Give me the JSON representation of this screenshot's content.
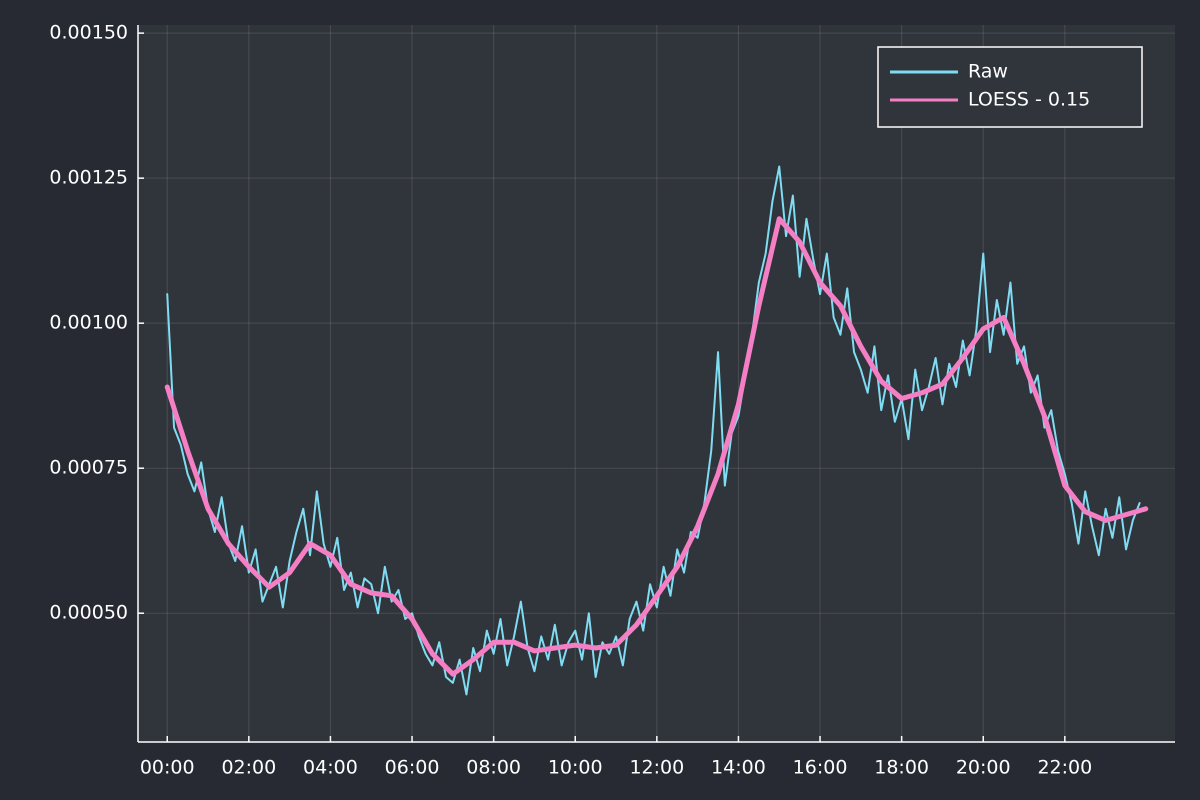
{
  "chart_data": {
    "type": "line",
    "xlim": [
      -43,
      1482
    ],
    "xticks": [
      {
        "value": 0,
        "label": "00:00"
      },
      {
        "value": 120,
        "label": "02:00"
      },
      {
        "value": 240,
        "label": "04:00"
      },
      {
        "value": 360,
        "label": "06:00"
      },
      {
        "value": 480,
        "label": "08:00"
      },
      {
        "value": 600,
        "label": "10:00"
      },
      {
        "value": 720,
        "label": "12:00"
      },
      {
        "value": 840,
        "label": "14:00"
      },
      {
        "value": 960,
        "label": "16:00"
      },
      {
        "value": 1080,
        "label": "18:00"
      },
      {
        "value": 1200,
        "label": "20:00"
      },
      {
        "value": 1320,
        "label": "22:00"
      }
    ],
    "ylim": [
      0.000278,
      0.001514
    ],
    "yticks": [
      {
        "value": 0.0005,
        "label": "0.00050"
      },
      {
        "value": 0.00075,
        "label": "0.00075"
      },
      {
        "value": 0.001,
        "label": "0.00100"
      },
      {
        "value": 0.00125,
        "label": "0.00125"
      },
      {
        "value": 0.0015,
        "label": "0.00150"
      }
    ],
    "grid": true,
    "legend": "top-right",
    "series": [
      {
        "name": "Raw",
        "color": "#7fdcf2",
        "width": 2,
        "x": [
          0,
          10,
          20,
          30,
          40,
          50,
          60,
          70,
          80,
          90,
          100,
          110,
          120,
          130,
          140,
          150,
          160,
          170,
          180,
          190,
          200,
          210,
          220,
          230,
          240,
          250,
          260,
          270,
          280,
          290,
          300,
          310,
          320,
          330,
          340,
          350,
          360,
          370,
          380,
          390,
          400,
          410,
          420,
          430,
          440,
          450,
          460,
          470,
          480,
          490,
          500,
          510,
          520,
          530,
          540,
          550,
          560,
          570,
          580,
          590,
          600,
          610,
          620,
          630,
          640,
          650,
          660,
          670,
          680,
          690,
          700,
          710,
          720,
          730,
          740,
          750,
          760,
          770,
          780,
          790,
          800,
          810,
          820,
          830,
          840,
          850,
          860,
          870,
          880,
          890,
          900,
          910,
          920,
          930,
          940,
          950,
          960,
          970,
          980,
          990,
          1000,
          1010,
          1020,
          1030,
          1040,
          1050,
          1060,
          1070,
          1080,
          1090,
          1100,
          1110,
          1120,
          1130,
          1140,
          1150,
          1160,
          1170,
          1180,
          1190,
          1200,
          1210,
          1220,
          1230,
          1240,
          1250,
          1260,
          1270,
          1280,
          1290,
          1300,
          1310,
          1320,
          1330,
          1340,
          1350,
          1360,
          1370,
          1380,
          1390,
          1400,
          1410,
          1420,
          1430
        ],
        "values": [
          0.00105,
          0.00082,
          0.00079,
          0.00074,
          0.00071,
          0.00076,
          0.00068,
          0.00064,
          0.0007,
          0.00062,
          0.00059,
          0.00065,
          0.00057,
          0.00061,
          0.00052,
          0.00055,
          0.00058,
          0.00051,
          0.00059,
          0.00064,
          0.00068,
          0.0006,
          0.00071,
          0.00062,
          0.00058,
          0.00063,
          0.00054,
          0.00057,
          0.00051,
          0.00056,
          0.00055,
          0.0005,
          0.00058,
          0.00052,
          0.00054,
          0.00049,
          0.0005,
          0.00046,
          0.00043,
          0.00041,
          0.00045,
          0.00039,
          0.00038,
          0.00042,
          0.00036,
          0.00044,
          0.0004,
          0.00047,
          0.00043,
          0.00049,
          0.00041,
          0.00046,
          0.00052,
          0.00044,
          0.0004,
          0.00046,
          0.00042,
          0.00048,
          0.00041,
          0.00045,
          0.00047,
          0.00042,
          0.0005,
          0.00039,
          0.00045,
          0.00043,
          0.00046,
          0.00041,
          0.00049,
          0.00052,
          0.00047,
          0.00055,
          0.00051,
          0.00058,
          0.00053,
          0.00061,
          0.00057,
          0.00064,
          0.00063,
          0.00069,
          0.00078,
          0.00095,
          0.00072,
          0.00081,
          0.00084,
          0.00091,
          0.00098,
          0.00107,
          0.00112,
          0.00121,
          0.00127,
          0.00115,
          0.00122,
          0.00108,
          0.00118,
          0.00111,
          0.00105,
          0.00112,
          0.00101,
          0.00098,
          0.00106,
          0.00095,
          0.00092,
          0.00088,
          0.00096,
          0.00085,
          0.00091,
          0.00083,
          0.00087,
          0.0008,
          0.00092,
          0.00085,
          0.00089,
          0.00094,
          0.00086,
          0.00093,
          0.00089,
          0.00097,
          0.00091,
          0.00099,
          0.00112,
          0.00095,
          0.00104,
          0.00098,
          0.00107,
          0.00093,
          0.00096,
          0.00088,
          0.00091,
          0.00082,
          0.00085,
          0.00078,
          0.00074,
          0.00069,
          0.00062,
          0.00071,
          0.00065,
          0.0006,
          0.00068,
          0.00063,
          0.0007,
          0.00061,
          0.00066,
          0.00069
        ]
      },
      {
        "name": "LOESS - 0.15",
        "color": "#f57fc4",
        "width": 5,
        "x": [
          0,
          30,
          60,
          90,
          120,
          150,
          180,
          210,
          240,
          270,
          300,
          330,
          360,
          390,
          420,
          450,
          480,
          510,
          540,
          570,
          600,
          630,
          660,
          690,
          720,
          750,
          780,
          810,
          840,
          870,
          900,
          930,
          960,
          990,
          1020,
          1050,
          1080,
          1110,
          1140,
          1170,
          1200,
          1230,
          1260,
          1290,
          1320,
          1350,
          1380,
          1410,
          1439
        ],
        "values": [
          0.00089,
          0.00078,
          0.00068,
          0.00062,
          0.00058,
          0.000545,
          0.00057,
          0.00062,
          0.0006,
          0.00055,
          0.000535,
          0.00053,
          0.00049,
          0.00043,
          0.000395,
          0.00042,
          0.00045,
          0.00045,
          0.000435,
          0.00044,
          0.000445,
          0.00044,
          0.000445,
          0.00048,
          0.00053,
          0.00058,
          0.00065,
          0.00074,
          0.00086,
          0.00103,
          0.00118,
          0.00114,
          0.00107,
          0.00103,
          0.00096,
          0.0009,
          0.00087,
          0.00088,
          0.000895,
          0.00094,
          0.00099,
          0.00101,
          0.00093,
          0.00084,
          0.00072,
          0.000675,
          0.00066,
          0.00067,
          0.00068
        ]
      }
    ]
  }
}
